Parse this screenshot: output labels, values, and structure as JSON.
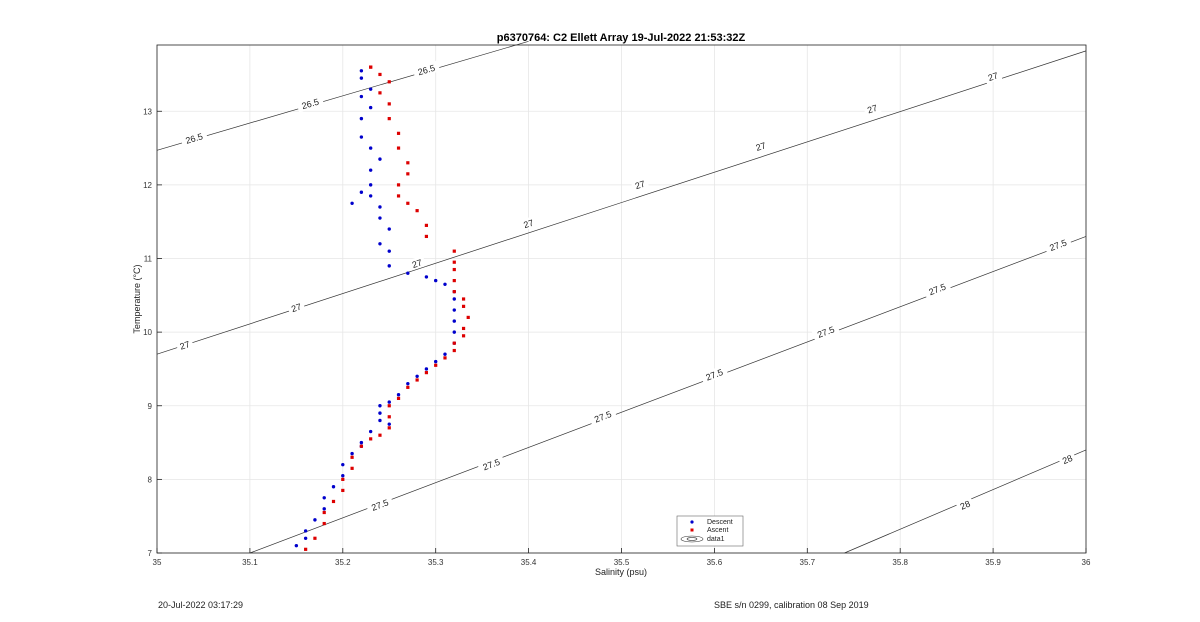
{
  "footer": {
    "left": "20-Jul-2022 03:17:29",
    "right": "SBE s/n 0299, calibration 08 Sep 2019"
  },
  "colors": {
    "descent": "#0000cc",
    "ascent": "#dd0000",
    "contour": "#333333",
    "grid": "#e6e6e6"
  },
  "chart_data": {
    "type": "scatter",
    "title": "p6370764: C2 Ellett Array 19-Jul-2022 21:53:32Z",
    "xlabel": "Salinity (psu)",
    "ylabel": "Temperature (°C)",
    "xlim": [
      35,
      36
    ],
    "ylim": [
      7,
      13.9
    ],
    "xticks": [
      35,
      35.1,
      35.2,
      35.3,
      35.4,
      35.5,
      35.6,
      35.7,
      35.8,
      35.9,
      36
    ],
    "yticks": [
      7,
      8,
      9,
      10,
      11,
      12,
      13
    ],
    "grid": true,
    "legend": {
      "position": "bottom-center",
      "entries": [
        "Descent",
        "Ascent",
        "data1"
      ]
    },
    "series": [
      {
        "name": "Descent",
        "marker": "dot",
        "points": [
          [
            35.15,
            7.1
          ],
          [
            35.16,
            7.2
          ],
          [
            35.16,
            7.3
          ],
          [
            35.17,
            7.45
          ],
          [
            35.18,
            7.6
          ],
          [
            35.18,
            7.75
          ],
          [
            35.19,
            7.9
          ],
          [
            35.2,
            8.05
          ],
          [
            35.2,
            8.2
          ],
          [
            35.21,
            8.35
          ],
          [
            35.22,
            8.5
          ],
          [
            35.22,
            8.45
          ],
          [
            35.23,
            8.65
          ],
          [
            35.24,
            8.8
          ],
          [
            35.24,
            8.9
          ],
          [
            35.24,
            9.0
          ],
          [
            35.25,
            9.05
          ],
          [
            35.25,
            8.75
          ],
          [
            35.26,
            9.15
          ],
          [
            35.27,
            9.3
          ],
          [
            35.28,
            9.4
          ],
          [
            35.29,
            9.5
          ],
          [
            35.3,
            9.6
          ],
          [
            35.31,
            9.7
          ],
          [
            35.32,
            9.85
          ],
          [
            35.32,
            10.0
          ],
          [
            35.32,
            10.15
          ],
          [
            35.32,
            10.3
          ],
          [
            35.32,
            10.45
          ],
          [
            35.32,
            10.55
          ],
          [
            35.31,
            10.65
          ],
          [
            35.3,
            10.7
          ],
          [
            35.29,
            10.75
          ],
          [
            35.27,
            10.8
          ],
          [
            35.25,
            10.9
          ],
          [
            35.25,
            11.1
          ],
          [
            35.24,
            11.2
          ],
          [
            35.25,
            11.4
          ],
          [
            35.24,
            11.55
          ],
          [
            35.24,
            11.7
          ],
          [
            35.23,
            11.85
          ],
          [
            35.22,
            11.9
          ],
          [
            35.21,
            11.75
          ],
          [
            35.23,
            12.0
          ],
          [
            35.23,
            12.2
          ],
          [
            35.24,
            12.35
          ],
          [
            35.23,
            12.5
          ],
          [
            35.22,
            12.65
          ],
          [
            35.22,
            12.9
          ],
          [
            35.23,
            13.05
          ],
          [
            35.22,
            13.2
          ],
          [
            35.23,
            13.3
          ],
          [
            35.22,
            13.45
          ],
          [
            35.22,
            13.55
          ]
        ]
      },
      {
        "name": "Ascent",
        "marker": "square",
        "points": [
          [
            35.16,
            7.05
          ],
          [
            35.17,
            7.2
          ],
          [
            35.18,
            7.4
          ],
          [
            35.18,
            7.55
          ],
          [
            35.19,
            7.7
          ],
          [
            35.2,
            7.85
          ],
          [
            35.2,
            8.0
          ],
          [
            35.21,
            8.15
          ],
          [
            35.21,
            8.3
          ],
          [
            35.22,
            8.45
          ],
          [
            35.23,
            8.55
          ],
          [
            35.24,
            8.6
          ],
          [
            35.25,
            8.7
          ],
          [
            35.25,
            8.85
          ],
          [
            35.25,
            9.0
          ],
          [
            35.26,
            9.1
          ],
          [
            35.27,
            9.25
          ],
          [
            35.28,
            9.35
          ],
          [
            35.29,
            9.45
          ],
          [
            35.3,
            9.55
          ],
          [
            35.31,
            9.65
          ],
          [
            35.32,
            9.75
          ],
          [
            35.32,
            9.85
          ],
          [
            35.33,
            9.95
          ],
          [
            35.33,
            10.05
          ],
          [
            35.335,
            10.2
          ],
          [
            35.33,
            10.35
          ],
          [
            35.33,
            10.45
          ],
          [
            35.32,
            10.55
          ],
          [
            35.32,
            10.7
          ],
          [
            35.32,
            10.85
          ],
          [
            35.32,
            10.95
          ],
          [
            35.32,
            11.1
          ],
          [
            35.29,
            11.3
          ],
          [
            35.29,
            11.45
          ],
          [
            35.28,
            11.65
          ],
          [
            35.27,
            11.75
          ],
          [
            35.26,
            11.85
          ],
          [
            35.26,
            12.0
          ],
          [
            35.27,
            12.15
          ],
          [
            35.27,
            12.3
          ],
          [
            35.26,
            12.5
          ],
          [
            35.26,
            12.7
          ],
          [
            35.25,
            12.9
          ],
          [
            35.25,
            13.1
          ],
          [
            35.24,
            13.25
          ],
          [
            35.25,
            13.4
          ],
          [
            35.24,
            13.5
          ],
          [
            35.23,
            13.6
          ],
          [
            35.23,
            13.6
          ]
        ]
      }
    ],
    "contours": [
      {
        "level": "26.5",
        "points": [
          [
            35,
            12.47
          ],
          [
            35.4,
            13.95
          ]
        ],
        "labels": [
          [
            35.04,
            12.63
          ],
          [
            35.165,
            13.1
          ],
          [
            35.29,
            13.56
          ]
        ]
      },
      {
        "level": "27",
        "points": [
          [
            35,
            9.7
          ],
          [
            36,
            13.82
          ]
        ],
        "labels": [
          [
            35.03,
            9.82
          ],
          [
            35.15,
            10.33
          ],
          [
            35.28,
            10.93
          ],
          [
            35.4,
            11.47
          ],
          [
            35.52,
            12.0
          ],
          [
            35.65,
            12.52
          ],
          [
            35.77,
            13.03
          ],
          [
            35.9,
            13.47
          ]
        ]
      },
      {
        "level": "27.5",
        "points": [
          [
            35.1,
            7.0
          ],
          [
            36,
            11.3
          ]
        ],
        "labels": [
          [
            35.24,
            7.65
          ],
          [
            35.36,
            8.2
          ],
          [
            35.48,
            8.85
          ],
          [
            35.6,
            9.42
          ],
          [
            35.72,
            10.0
          ],
          [
            35.84,
            10.58
          ],
          [
            35.97,
            11.18
          ]
        ]
      },
      {
        "level": "28",
        "points": [
          [
            35.74,
            7.0
          ],
          [
            36,
            8.4
          ]
        ],
        "labels": [
          [
            35.87,
            7.65
          ],
          [
            35.98,
            8.27
          ]
        ]
      }
    ]
  }
}
